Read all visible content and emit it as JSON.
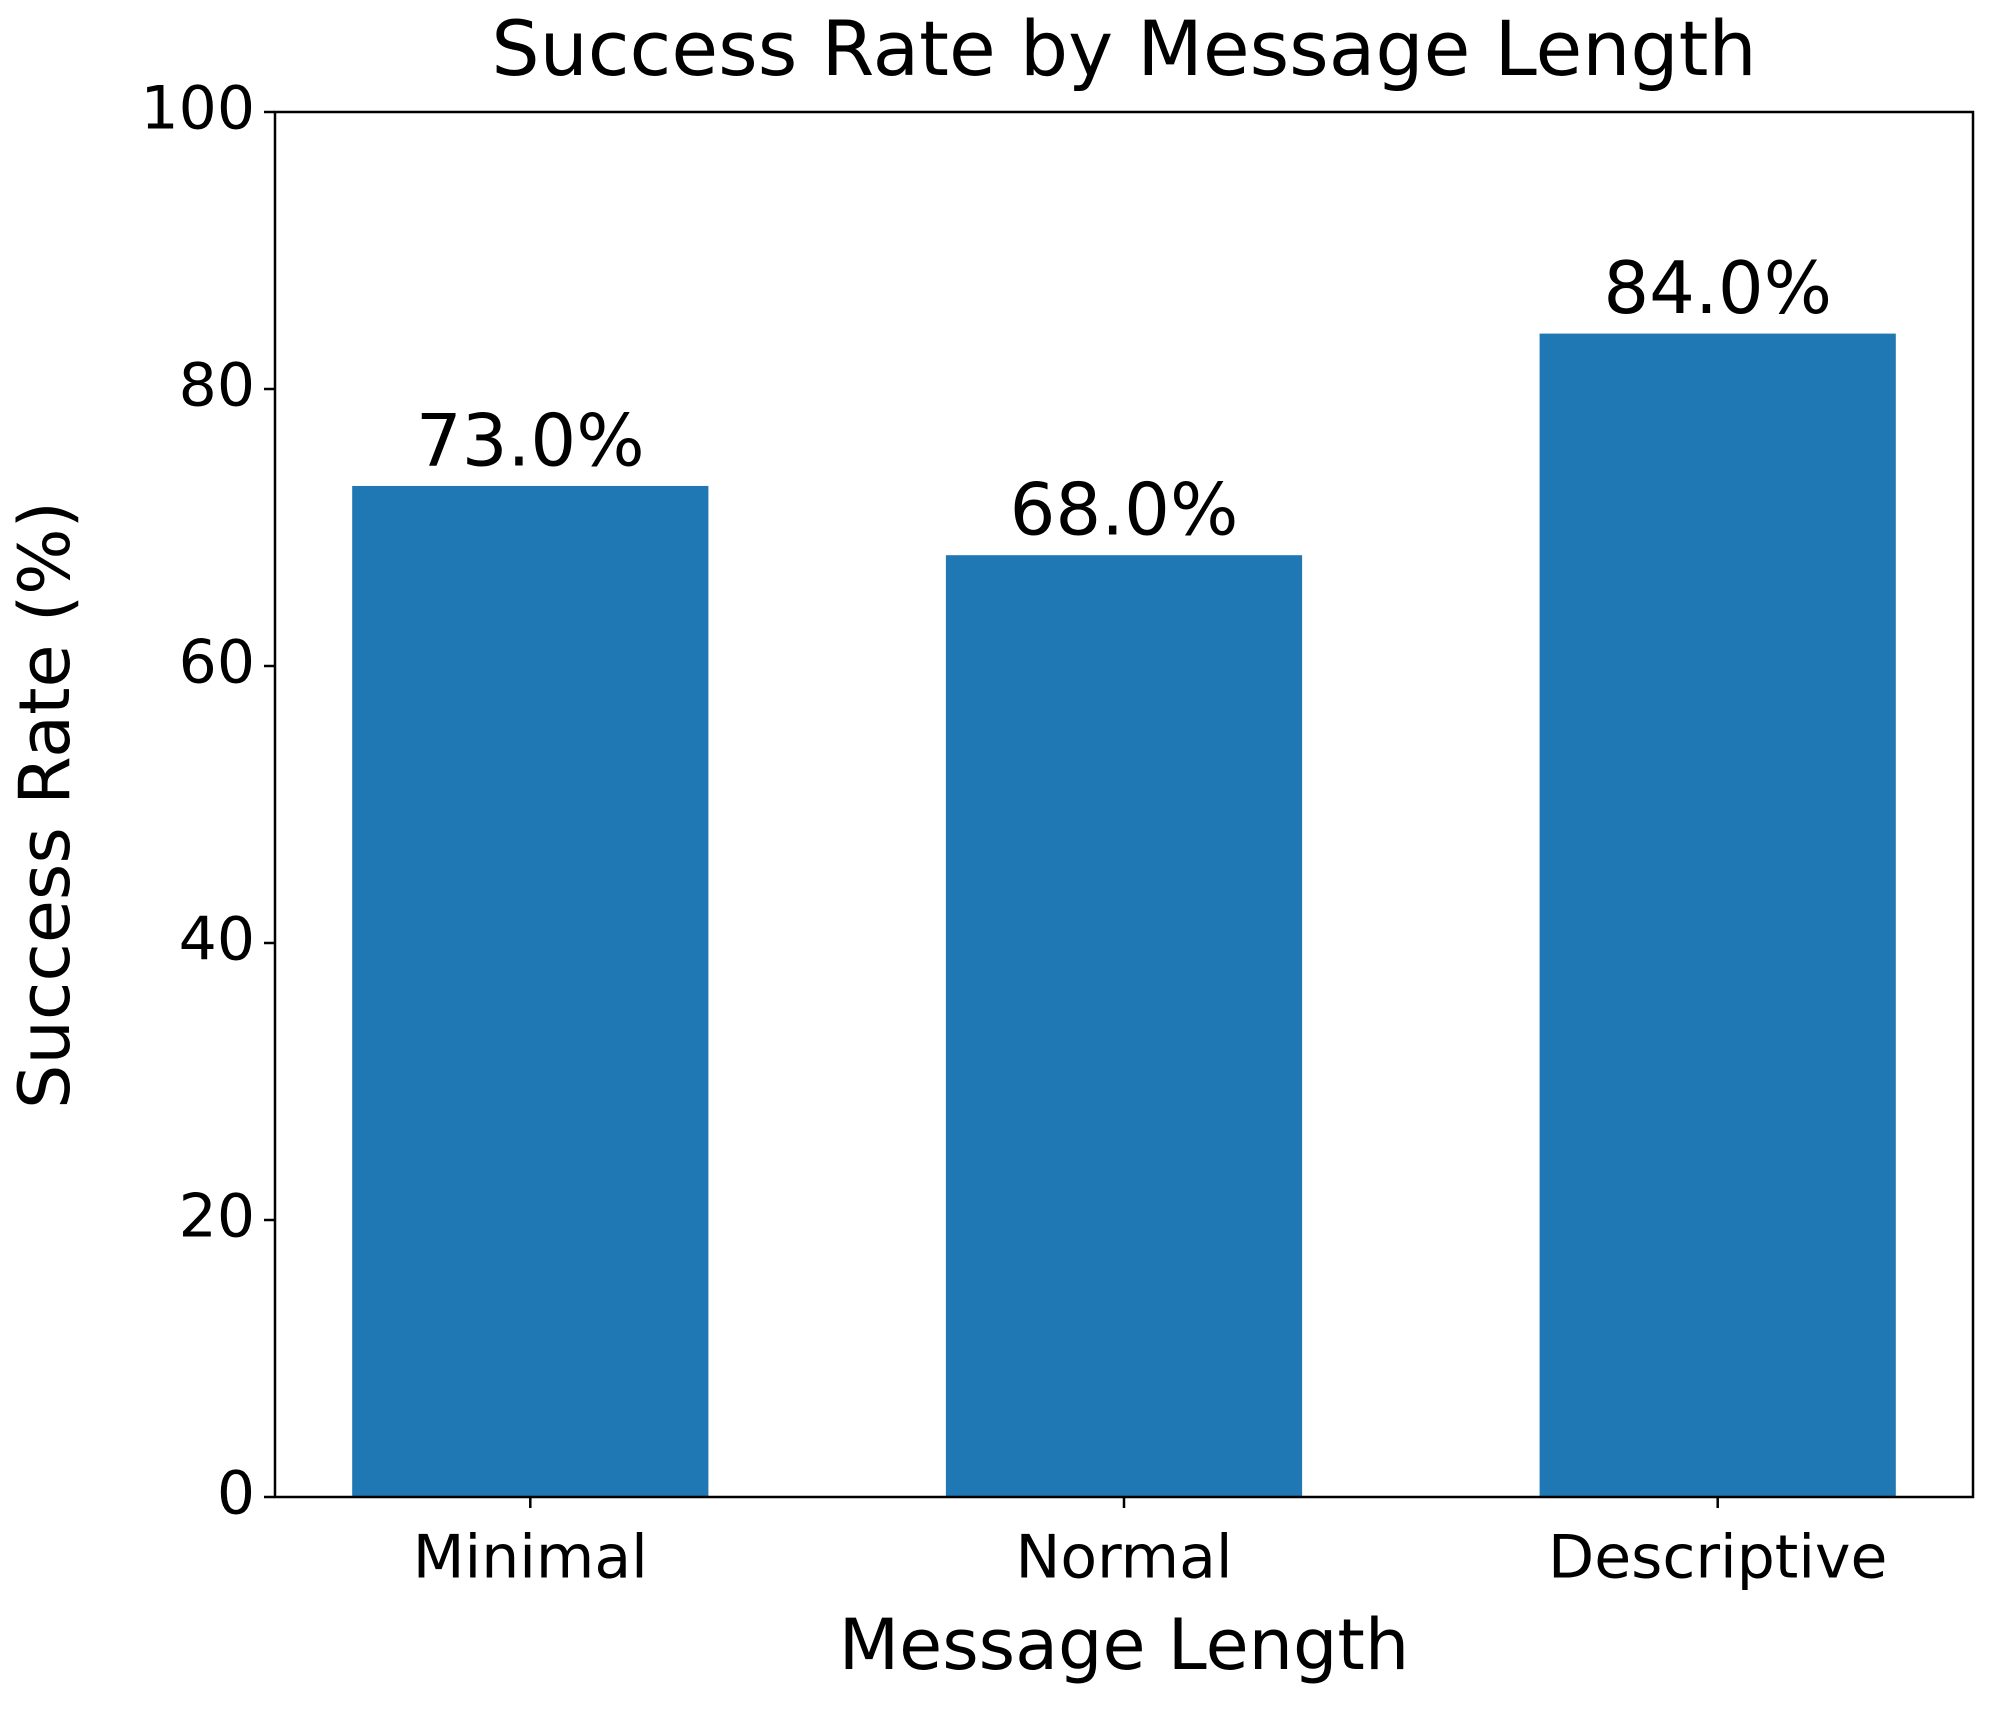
{
  "chart_data": {
    "type": "bar",
    "title": "Success Rate by Message Length",
    "x_label": "Message Length",
    "y_label": "Success Rate (%)",
    "categories": [
      "Minimal",
      "Normal",
      "Descriptive"
    ],
    "values": [
      73.0,
      68.0,
      84.0
    ],
    "value_labels": [
      "73.0%",
      "68.0%",
      "84.0%"
    ],
    "color": "#1f77b4",
    "ylim": [
      0,
      100
    ],
    "yticks": [
      0,
      20,
      40,
      60,
      80,
      100
    ],
    "grid": false
  }
}
